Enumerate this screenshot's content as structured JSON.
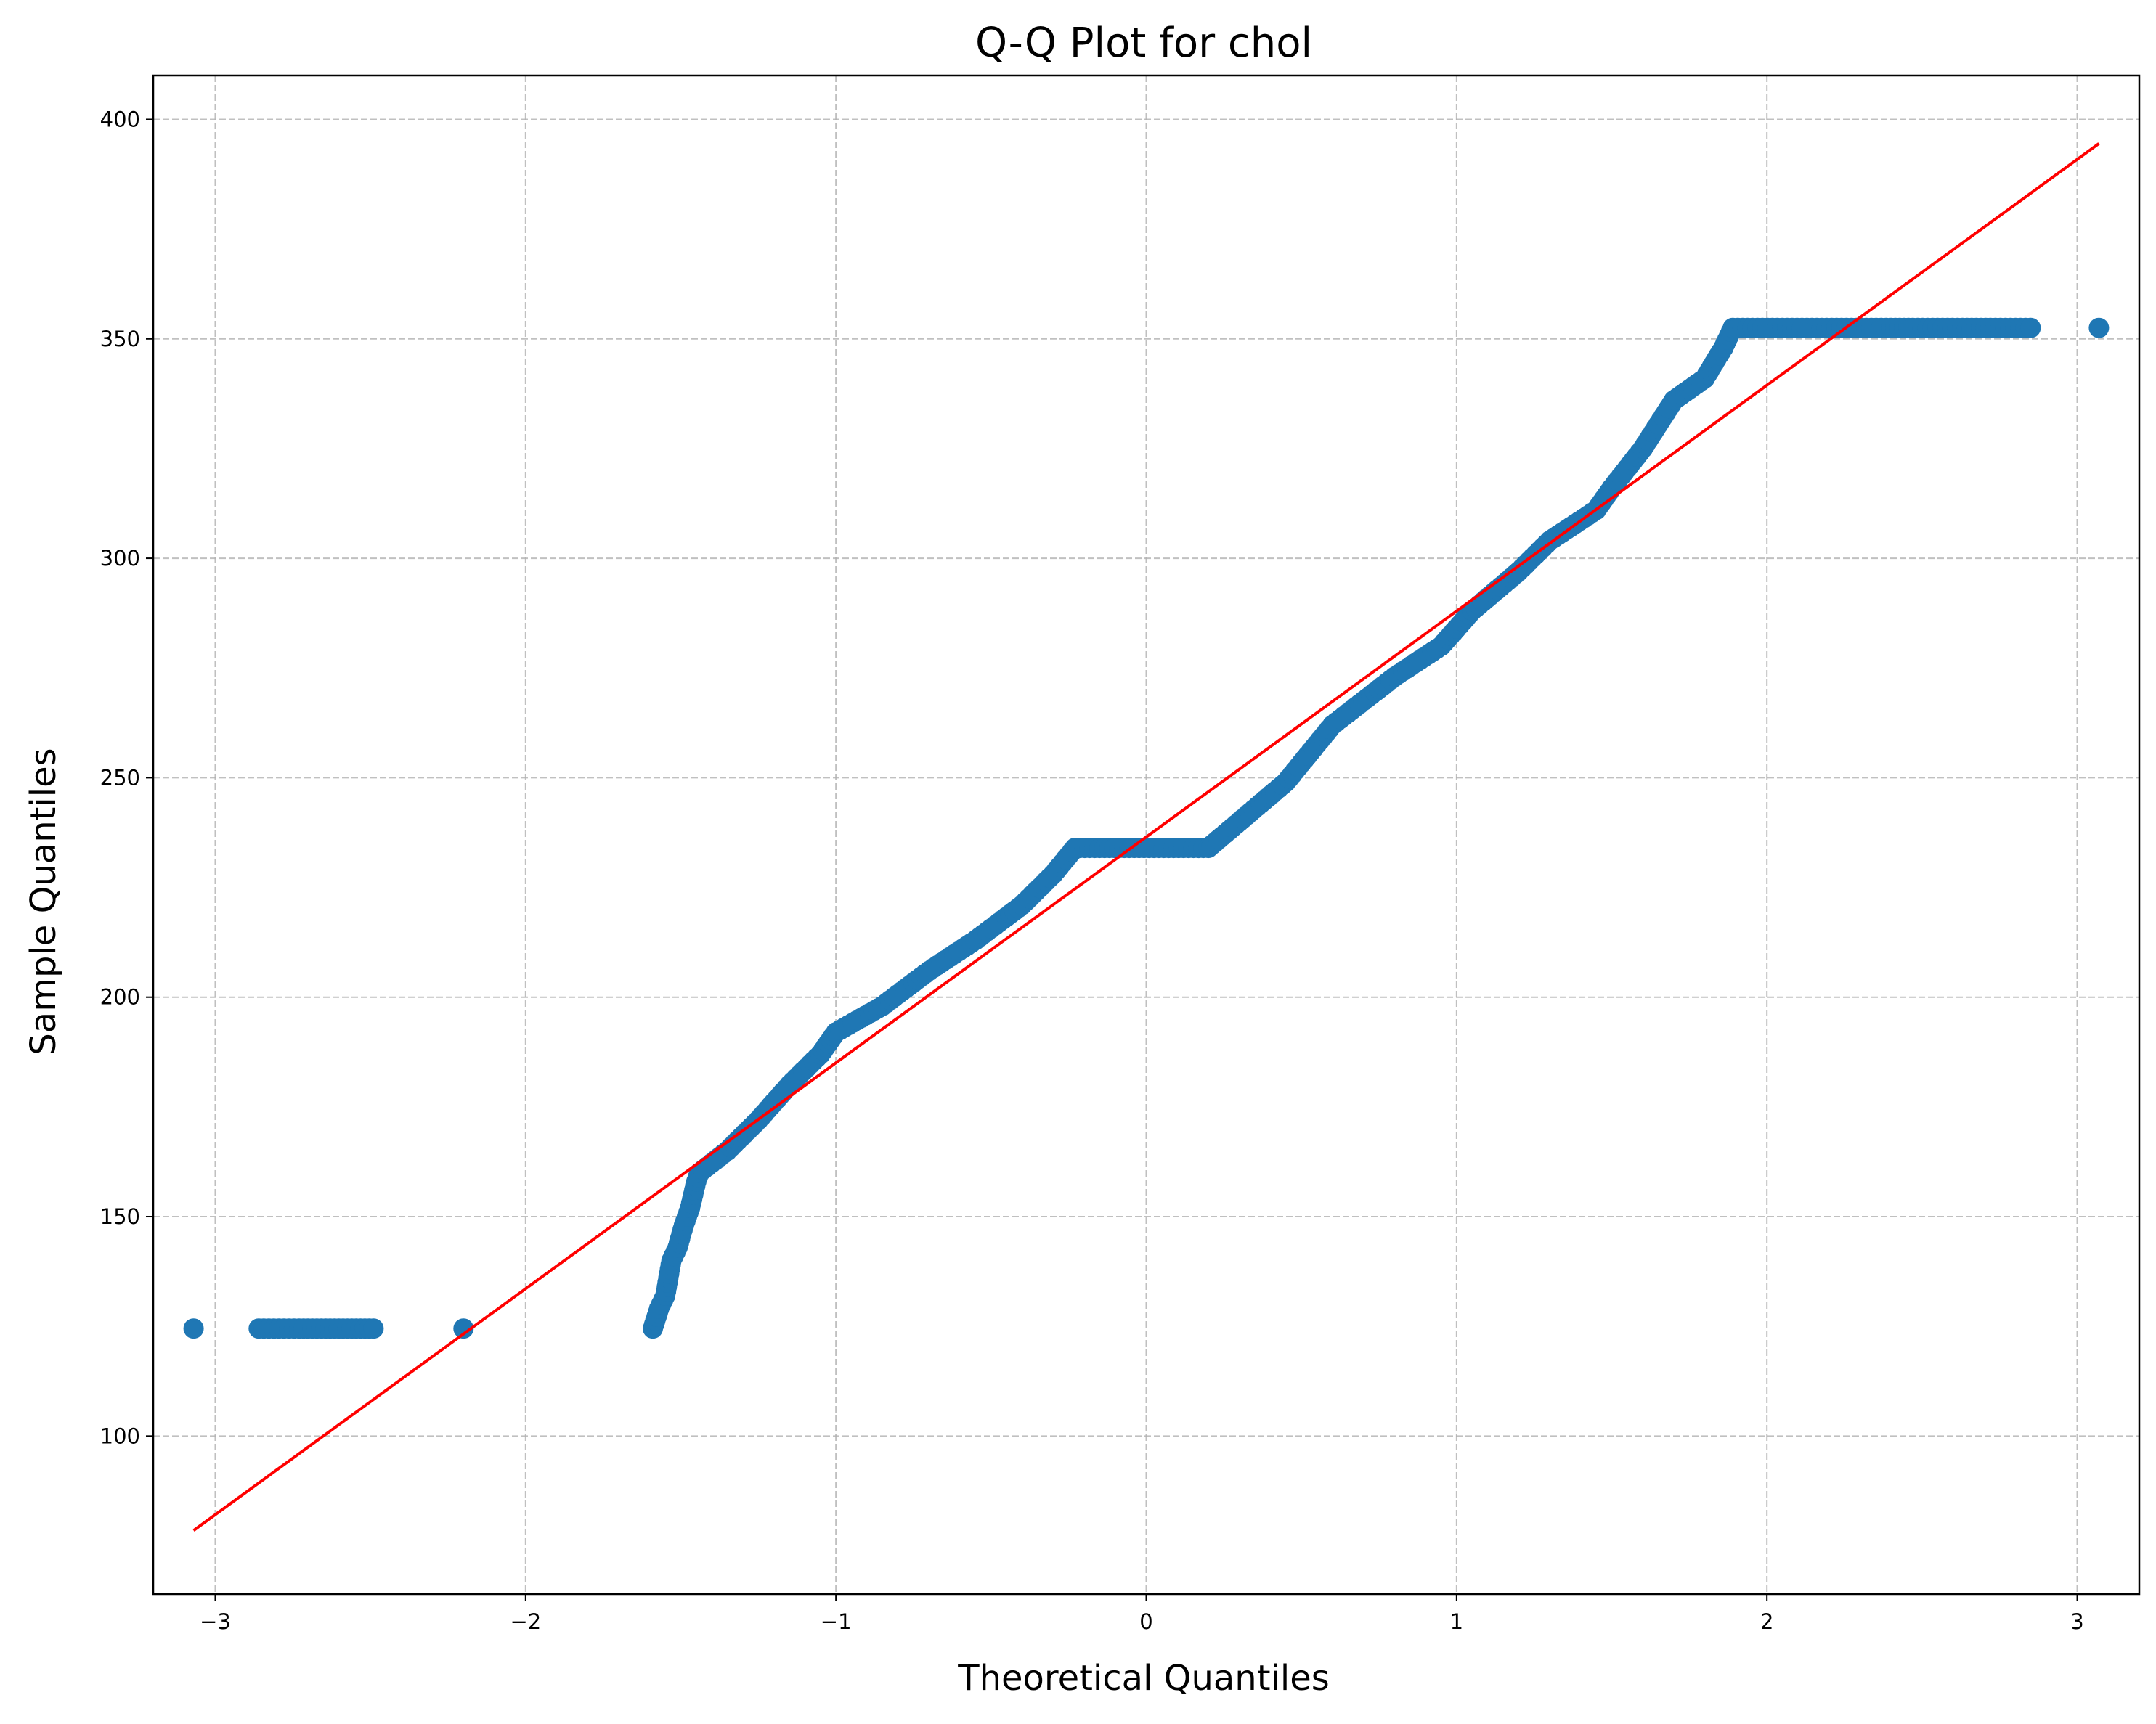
{
  "chart_data": {
    "type": "scatter",
    "title": "Q-Q Plot for chol",
    "xlabel": "Theoretical Quantiles",
    "ylabel": "Sample Quantiles",
    "xlim": [
      -3.2,
      3.2
    ],
    "ylim": [
      64,
      410
    ],
    "xticks": [
      -3,
      -2,
      -1,
      0,
      1,
      2,
      3
    ],
    "xtick_labels": [
      "−3",
      "−2",
      "−1",
      "0",
      "1",
      "2",
      "3"
    ],
    "yticks": [
      100,
      150,
      200,
      250,
      300,
      350,
      400
    ],
    "ytick_labels": [
      "100",
      "150",
      "200",
      "250",
      "300",
      "350",
      "400"
    ],
    "grid": true,
    "grid_style": "dashed",
    "marker_color": "#1f77b4",
    "line_color": "#ff0000",
    "reference_line": {
      "x": [
        -3.07,
        3.07
      ],
      "y": [
        78.5,
        394.5
      ]
    },
    "points_outline": [
      [
        -3.07,
        124.5
      ],
      [
        -2.86,
        124.5
      ],
      [
        -2.73,
        124.5
      ],
      [
        -2.63,
        124.5
      ],
      [
        -2.56,
        124.5
      ],
      [
        -2.49,
        124.5
      ],
      [
        -2.2,
        124.5
      ],
      [
        -1.59,
        124.5
      ],
      [
        -1.57,
        129
      ],
      [
        -1.55,
        132
      ],
      [
        -1.53,
        140
      ],
      [
        -1.51,
        143
      ],
      [
        -1.49,
        148
      ],
      [
        -1.47,
        152
      ],
      [
        -1.45,
        158
      ],
      [
        -1.44,
        160
      ],
      [
        -1.35,
        165
      ],
      [
        -1.25,
        172
      ],
      [
        -1.15,
        180
      ],
      [
        -1.05,
        187
      ],
      [
        -1.0,
        192
      ],
      [
        -0.85,
        198
      ],
      [
        -0.7,
        206
      ],
      [
        -0.55,
        213
      ],
      [
        -0.4,
        221
      ],
      [
        -0.3,
        228
      ],
      [
        -0.23,
        234
      ],
      [
        0.2,
        234
      ],
      [
        0.3,
        240
      ],
      [
        0.45,
        249
      ],
      [
        0.6,
        262
      ],
      [
        0.8,
        273
      ],
      [
        0.95,
        280
      ],
      [
        1.05,
        288
      ],
      [
        1.2,
        297
      ],
      [
        1.3,
        304
      ],
      [
        1.45,
        311
      ],
      [
        1.5,
        316
      ],
      [
        1.6,
        325
      ],
      [
        1.7,
        336
      ],
      [
        1.8,
        341
      ],
      [
        1.86,
        348
      ],
      [
        1.89,
        352.5
      ],
      [
        2.4,
        352.5
      ],
      [
        2.47,
        352.5
      ],
      [
        2.55,
        352.5
      ],
      [
        2.63,
        352.5
      ],
      [
        2.72,
        352.5
      ],
      [
        2.85,
        352.5
      ],
      [
        3.07,
        352.5
      ]
    ]
  }
}
